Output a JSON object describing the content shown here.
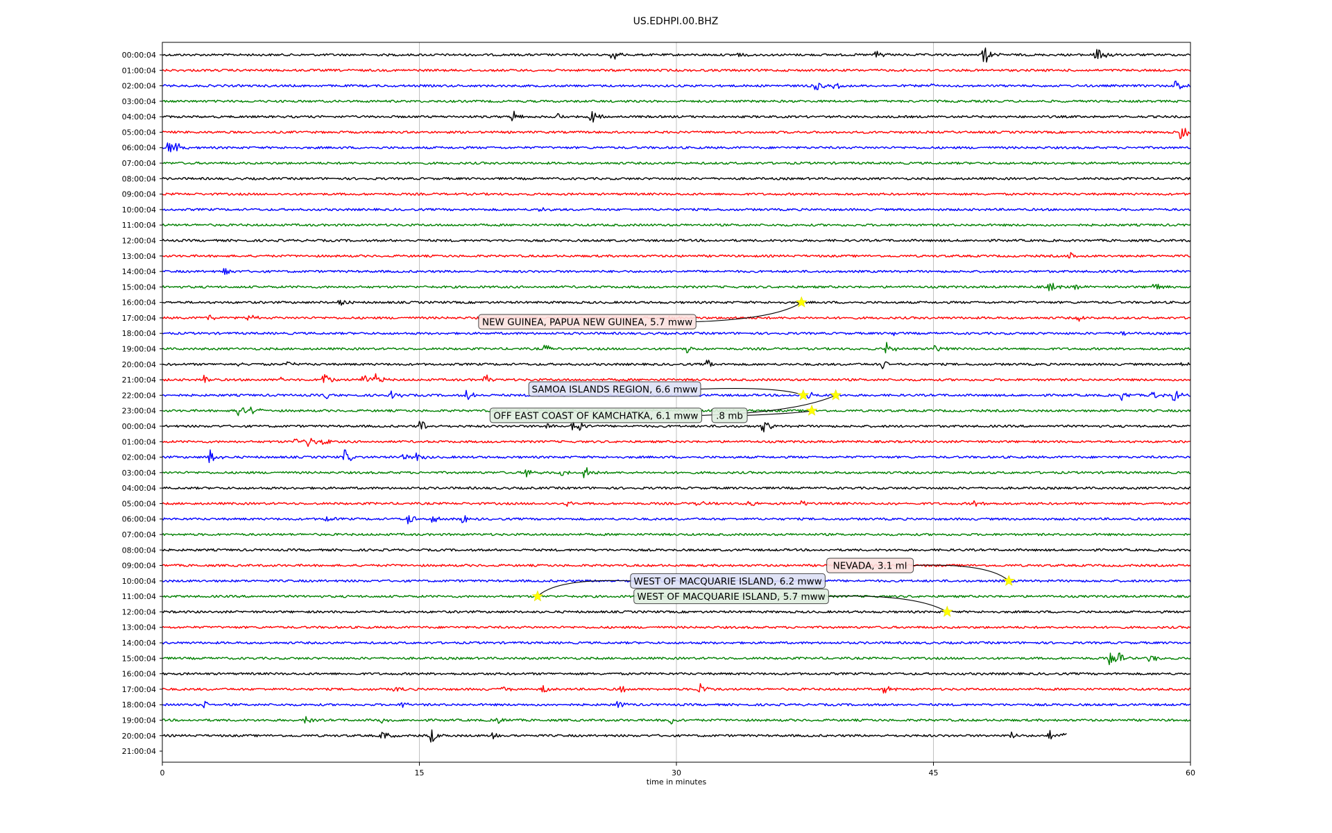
{
  "chart_data": {
    "type": "line",
    "title": "US.EDHPI.00.BHZ",
    "xlabel": "time in minutes",
    "ylabel": "",
    "xlim": [
      0,
      60
    ],
    "xticks": [
      "0",
      "15",
      "30",
      "45",
      "60"
    ],
    "grid": "vertical",
    "colors": [
      "#000000",
      "#ff0000",
      "#0000ff",
      "#008000"
    ],
    "row_labels": [
      "00:00:04",
      "01:00:04",
      "02:00:04",
      "03:00:04",
      "04:00:04",
      "05:00:04",
      "06:00:04",
      "07:00:04",
      "08:00:04",
      "09:00:04",
      "10:00:04",
      "11:00:04",
      "12:00:04",
      "13:00:04",
      "14:00:04",
      "15:00:04",
      "16:00:04",
      "17:00:04",
      "18:00:04",
      "19:00:04",
      "20:00:04",
      "21:00:04",
      "22:00:04",
      "23:00:04",
      "00:00:04",
      "01:00:04",
      "02:00:04",
      "03:00:04",
      "04:00:04",
      "05:00:04",
      "06:00:04",
      "07:00:04",
      "08:00:04",
      "09:00:04",
      "10:00:04",
      "11:00:04",
      "12:00:04",
      "13:00:04",
      "14:00:04",
      "15:00:04",
      "16:00:04",
      "17:00:04",
      "18:00:04",
      "19:00:04",
      "20:00:04",
      "21:00:04"
    ],
    "last_trace_end_minute": 52.8,
    "bursts": [
      {
        "row": 0,
        "minute": 26.3,
        "amp": 0.7
      },
      {
        "row": 0,
        "minute": 33.5,
        "amp": 0.4
      },
      {
        "row": 0,
        "minute": 41.7,
        "amp": 0.8
      },
      {
        "row": 0,
        "minute": 48.0,
        "amp": 1.3
      },
      {
        "row": 0,
        "minute": 54.5,
        "amp": 1.1
      },
      {
        "row": 0,
        "minute": 55.2,
        "amp": 0.6
      },
      {
        "row": 2,
        "minute": 38.2,
        "amp": 0.6
      },
      {
        "row": 2,
        "minute": 39.3,
        "amp": 0.5
      },
      {
        "row": 2,
        "minute": 44.8,
        "amp": 0.5
      },
      {
        "row": 2,
        "minute": 59.2,
        "amp": 0.7
      },
      {
        "row": 4,
        "minute": 20.5,
        "amp": 0.8
      },
      {
        "row": 4,
        "minute": 23.2,
        "amp": 0.4
      },
      {
        "row": 4,
        "minute": 25.1,
        "amp": 1.0
      },
      {
        "row": 5,
        "minute": 59.5,
        "amp": 1.0
      },
      {
        "row": 6,
        "minute": 0.4,
        "amp": 0.8
      },
      {
        "row": 6,
        "minute": 0.9,
        "amp": 0.6
      },
      {
        "row": 10,
        "minute": 22.1,
        "amp": 0.3
      },
      {
        "row": 13,
        "minute": 53.0,
        "amp": 0.4
      },
      {
        "row": 14,
        "minute": 3.7,
        "amp": 0.4
      },
      {
        "row": 15,
        "minute": 51.8,
        "amp": 0.8
      },
      {
        "row": 15,
        "minute": 53.3,
        "amp": 0.5
      },
      {
        "row": 15,
        "minute": 57.9,
        "amp": 0.7
      },
      {
        "row": 16,
        "minute": 10.4,
        "amp": 0.5
      },
      {
        "row": 17,
        "minute": 2.8,
        "amp": 0.4
      },
      {
        "row": 17,
        "minute": 5.1,
        "amp": 0.4
      },
      {
        "row": 17,
        "minute": 29.6,
        "amp": 0.6
      },
      {
        "row": 17,
        "minute": 53.5,
        "amp": 0.4
      },
      {
        "row": 18,
        "minute": 42.7,
        "amp": 0.3
      },
      {
        "row": 18,
        "minute": 56.0,
        "amp": 0.4
      },
      {
        "row": 19,
        "minute": 22.4,
        "amp": 0.6
      },
      {
        "row": 19,
        "minute": 30.7,
        "amp": 0.5
      },
      {
        "row": 19,
        "minute": 42.3,
        "amp": 0.9
      },
      {
        "row": 19,
        "minute": 45.2,
        "amp": 0.5
      },
      {
        "row": 20,
        "minute": 4.4,
        "amp": 0.4
      },
      {
        "row": 20,
        "minute": 7.4,
        "amp": 0.4
      },
      {
        "row": 20,
        "minute": 31.9,
        "amp": 0.5
      },
      {
        "row": 20,
        "minute": 42.1,
        "amp": 0.6
      },
      {
        "row": 20,
        "minute": 59.6,
        "amp": 0.4
      },
      {
        "row": 21,
        "minute": 2.5,
        "amp": 0.5
      },
      {
        "row": 21,
        "minute": 7.0,
        "amp": 0.5
      },
      {
        "row": 21,
        "minute": 9.4,
        "amp": 1.0
      },
      {
        "row": 21,
        "minute": 11.8,
        "amp": 0.6
      },
      {
        "row": 21,
        "minute": 12.4,
        "amp": 0.9
      },
      {
        "row": 21,
        "minute": 18.9,
        "amp": 0.6
      },
      {
        "row": 22,
        "minute": 9.6,
        "amp": 0.5
      },
      {
        "row": 22,
        "minute": 13.5,
        "amp": 0.5
      },
      {
        "row": 22,
        "minute": 17.8,
        "amp": 0.7
      },
      {
        "row": 22,
        "minute": 37.8,
        "amp": 0.6
      },
      {
        "row": 22,
        "minute": 56.0,
        "amp": 0.7
      },
      {
        "row": 22,
        "minute": 57.9,
        "amp": 0.6
      },
      {
        "row": 22,
        "minute": 59.1,
        "amp": 0.8
      },
      {
        "row": 23,
        "minute": 4.5,
        "amp": 0.8
      },
      {
        "row": 23,
        "minute": 5.3,
        "amp": 0.5
      },
      {
        "row": 23,
        "minute": 28.3,
        "amp": 0.3
      },
      {
        "row": 24,
        "minute": 15.1,
        "amp": 0.9
      },
      {
        "row": 24,
        "minute": 22.5,
        "amp": 0.6
      },
      {
        "row": 24,
        "minute": 24.0,
        "amp": 0.7
      },
      {
        "row": 24,
        "minute": 24.5,
        "amp": 0.7
      },
      {
        "row": 24,
        "minute": 35.1,
        "amp": 0.8
      },
      {
        "row": 25,
        "minute": 7.7,
        "amp": 0.6
      },
      {
        "row": 25,
        "minute": 8.5,
        "amp": 0.7
      },
      {
        "row": 25,
        "minute": 9.4,
        "amp": 0.5
      },
      {
        "row": 26,
        "minute": 2.8,
        "amp": 1.0
      },
      {
        "row": 26,
        "minute": 10.7,
        "amp": 0.9
      },
      {
        "row": 26,
        "minute": 14.1,
        "amp": 0.5
      },
      {
        "row": 26,
        "minute": 14.9,
        "amp": 0.6
      },
      {
        "row": 27,
        "minute": 21.3,
        "amp": 0.6
      },
      {
        "row": 27,
        "minute": 23.4,
        "amp": 0.6
      },
      {
        "row": 27,
        "minute": 24.7,
        "amp": 0.8
      },
      {
        "row": 29,
        "minute": 23.7,
        "amp": 0.5
      },
      {
        "row": 29,
        "minute": 31.3,
        "amp": 0.4
      },
      {
        "row": 29,
        "minute": 34.2,
        "amp": 0.4
      },
      {
        "row": 29,
        "minute": 37.4,
        "amp": 0.4
      },
      {
        "row": 29,
        "minute": 42.9,
        "amp": 0.4
      },
      {
        "row": 29,
        "minute": 47.5,
        "amp": 0.5
      },
      {
        "row": 30,
        "minute": 9.6,
        "amp": 0.5
      },
      {
        "row": 30,
        "minute": 14.4,
        "amp": 0.7
      },
      {
        "row": 30,
        "minute": 15.7,
        "amp": 0.6
      },
      {
        "row": 30,
        "minute": 17.6,
        "amp": 0.6
      },
      {
        "row": 39,
        "minute": 55.3,
        "amp": 1.1
      },
      {
        "row": 39,
        "minute": 55.9,
        "amp": 0.6
      },
      {
        "row": 39,
        "minute": 57.7,
        "amp": 0.6
      },
      {
        "row": 41,
        "minute": 13.6,
        "amp": 0.4
      },
      {
        "row": 41,
        "minute": 19.9,
        "amp": 0.4
      },
      {
        "row": 41,
        "minute": 22.2,
        "amp": 0.7
      },
      {
        "row": 41,
        "minute": 26.8,
        "amp": 0.4
      },
      {
        "row": 41,
        "minute": 31.4,
        "amp": 0.8
      },
      {
        "row": 41,
        "minute": 42.2,
        "amp": 0.5
      },
      {
        "row": 42,
        "minute": 2.5,
        "amp": 0.5
      },
      {
        "row": 42,
        "minute": 14.1,
        "amp": 0.4
      },
      {
        "row": 42,
        "minute": 26.6,
        "amp": 0.4
      },
      {
        "row": 43,
        "minute": 8.4,
        "amp": 0.5
      },
      {
        "row": 43,
        "minute": 12.8,
        "amp": 0.5
      },
      {
        "row": 43,
        "minute": 19.6,
        "amp": 0.5
      },
      {
        "row": 43,
        "minute": 29.7,
        "amp": 0.6
      },
      {
        "row": 44,
        "minute": 12.9,
        "amp": 0.6
      },
      {
        "row": 44,
        "minute": 15.7,
        "amp": 0.9
      },
      {
        "row": 44,
        "minute": 19.4,
        "amp": 0.5
      },
      {
        "row": 44,
        "minute": 49.6,
        "amp": 0.4
      },
      {
        "row": 44,
        "minute": 51.8,
        "amp": 0.6
      },
      {
        "row": 44,
        "minute": 52.5,
        "amp": 0.5
      }
    ],
    "annotations": [
      {
        "text": "NEW GUINEA, PAPUA NEW GUINEA, 5.7 mww",
        "row": 16,
        "minute": 37.3,
        "label_row": 17.25,
        "label_minute": 24.8
      },
      {
        "text": "SAMOA ISLANDS REGION, 6.6 mww",
        "row": 22,
        "minute": 37.4,
        "label_row": 21.6,
        "label_minute": 26.4
      },
      {
        "text": "OFF EAST COAST OF KAMCHATKA, 6.1 mww",
        "row": 22,
        "minute": 39.3,
        "label_row": 23.3,
        "label_minute": 25.3
      },
      {
        "text": ".8 mb",
        "row": 23,
        "minute": 37.9,
        "label_row": 23.3,
        "label_minute": 33.1
      },
      {
        "text": "NEVADA, 3.1 ml",
        "row": 34,
        "minute": 49.4,
        "label_row": 33.0,
        "label_minute": 41.3
      },
      {
        "text": "WEST OF MACQUARIE ISLAND, 6.2 mww",
        "row": 35,
        "minute": 21.9,
        "label_row": 34.0,
        "label_minute": 33.0
      },
      {
        "text": "WEST OF MACQUARIE ISLAND, 5.7 mww",
        "row": 36,
        "minute": 45.8,
        "label_row": 35.0,
        "label_minute": 33.2
      }
    ]
  }
}
